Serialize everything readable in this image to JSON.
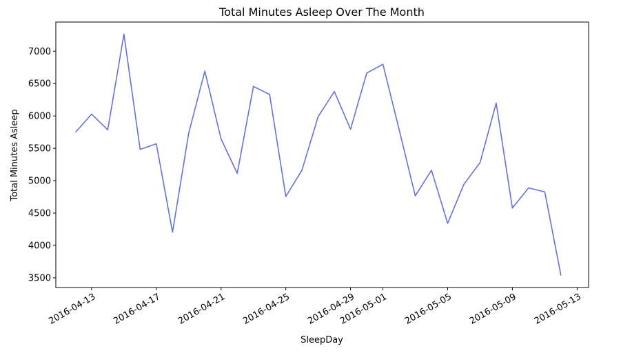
{
  "chart_data": {
    "type": "line",
    "title": "Total Minutes Asleep Over The Month",
    "xlabel": "SleepDay",
    "ylabel": "Total Minutes Asleep",
    "line_color": "#6670d9",
    "grid": false,
    "legend": "none",
    "xlim": [
      "2016-04-10T19:00",
      "2016-05-13T17:00"
    ],
    "ylim": [
      3350,
      7450
    ],
    "x_ticks": [
      "2016-04-13",
      "2016-04-17",
      "2016-04-21",
      "2016-04-25",
      "2016-04-29",
      "2016-05-01",
      "2016-05-05",
      "2016-05-09",
      "2016-05-13"
    ],
    "y_ticks": [
      3500,
      4000,
      4500,
      5000,
      5500,
      6000,
      6500,
      7000
    ],
    "series": [
      {
        "x": [
          "2016-04-12",
          "2016-04-13",
          "2016-04-14",
          "2016-04-15",
          "2016-04-16",
          "2016-04-17",
          "2016-04-18",
          "2016-04-19",
          "2016-04-20",
          "2016-04-21",
          "2016-04-22",
          "2016-04-23",
          "2016-04-24",
          "2016-04-25",
          "2016-04-26",
          "2016-04-27",
          "2016-04-28",
          "2016-04-29",
          "2016-04-30",
          "2016-05-01",
          "2016-05-02",
          "2016-05-03",
          "2016-05-04",
          "2016-05-05",
          "2016-05-06",
          "2016-05-07",
          "2016-05-08",
          "2016-05-09",
          "2016-05-10",
          "2016-05-11",
          "2016-05-12"
        ],
        "values": [
          5746,
          6027,
          5786,
          7263,
          5483,
          5570,
          4204,
          5734,
          6693,
          5645,
          5112,
          6456,
          6331,
          4755,
          5163,
          5990,
          6377,
          5795,
          6663,
          6797,
          5794,
          4765,
          5161,
          4341,
          4943,
          5280,
          6199,
          4578,
          4889,
          4826,
          3536
        ]
      }
    ]
  }
}
